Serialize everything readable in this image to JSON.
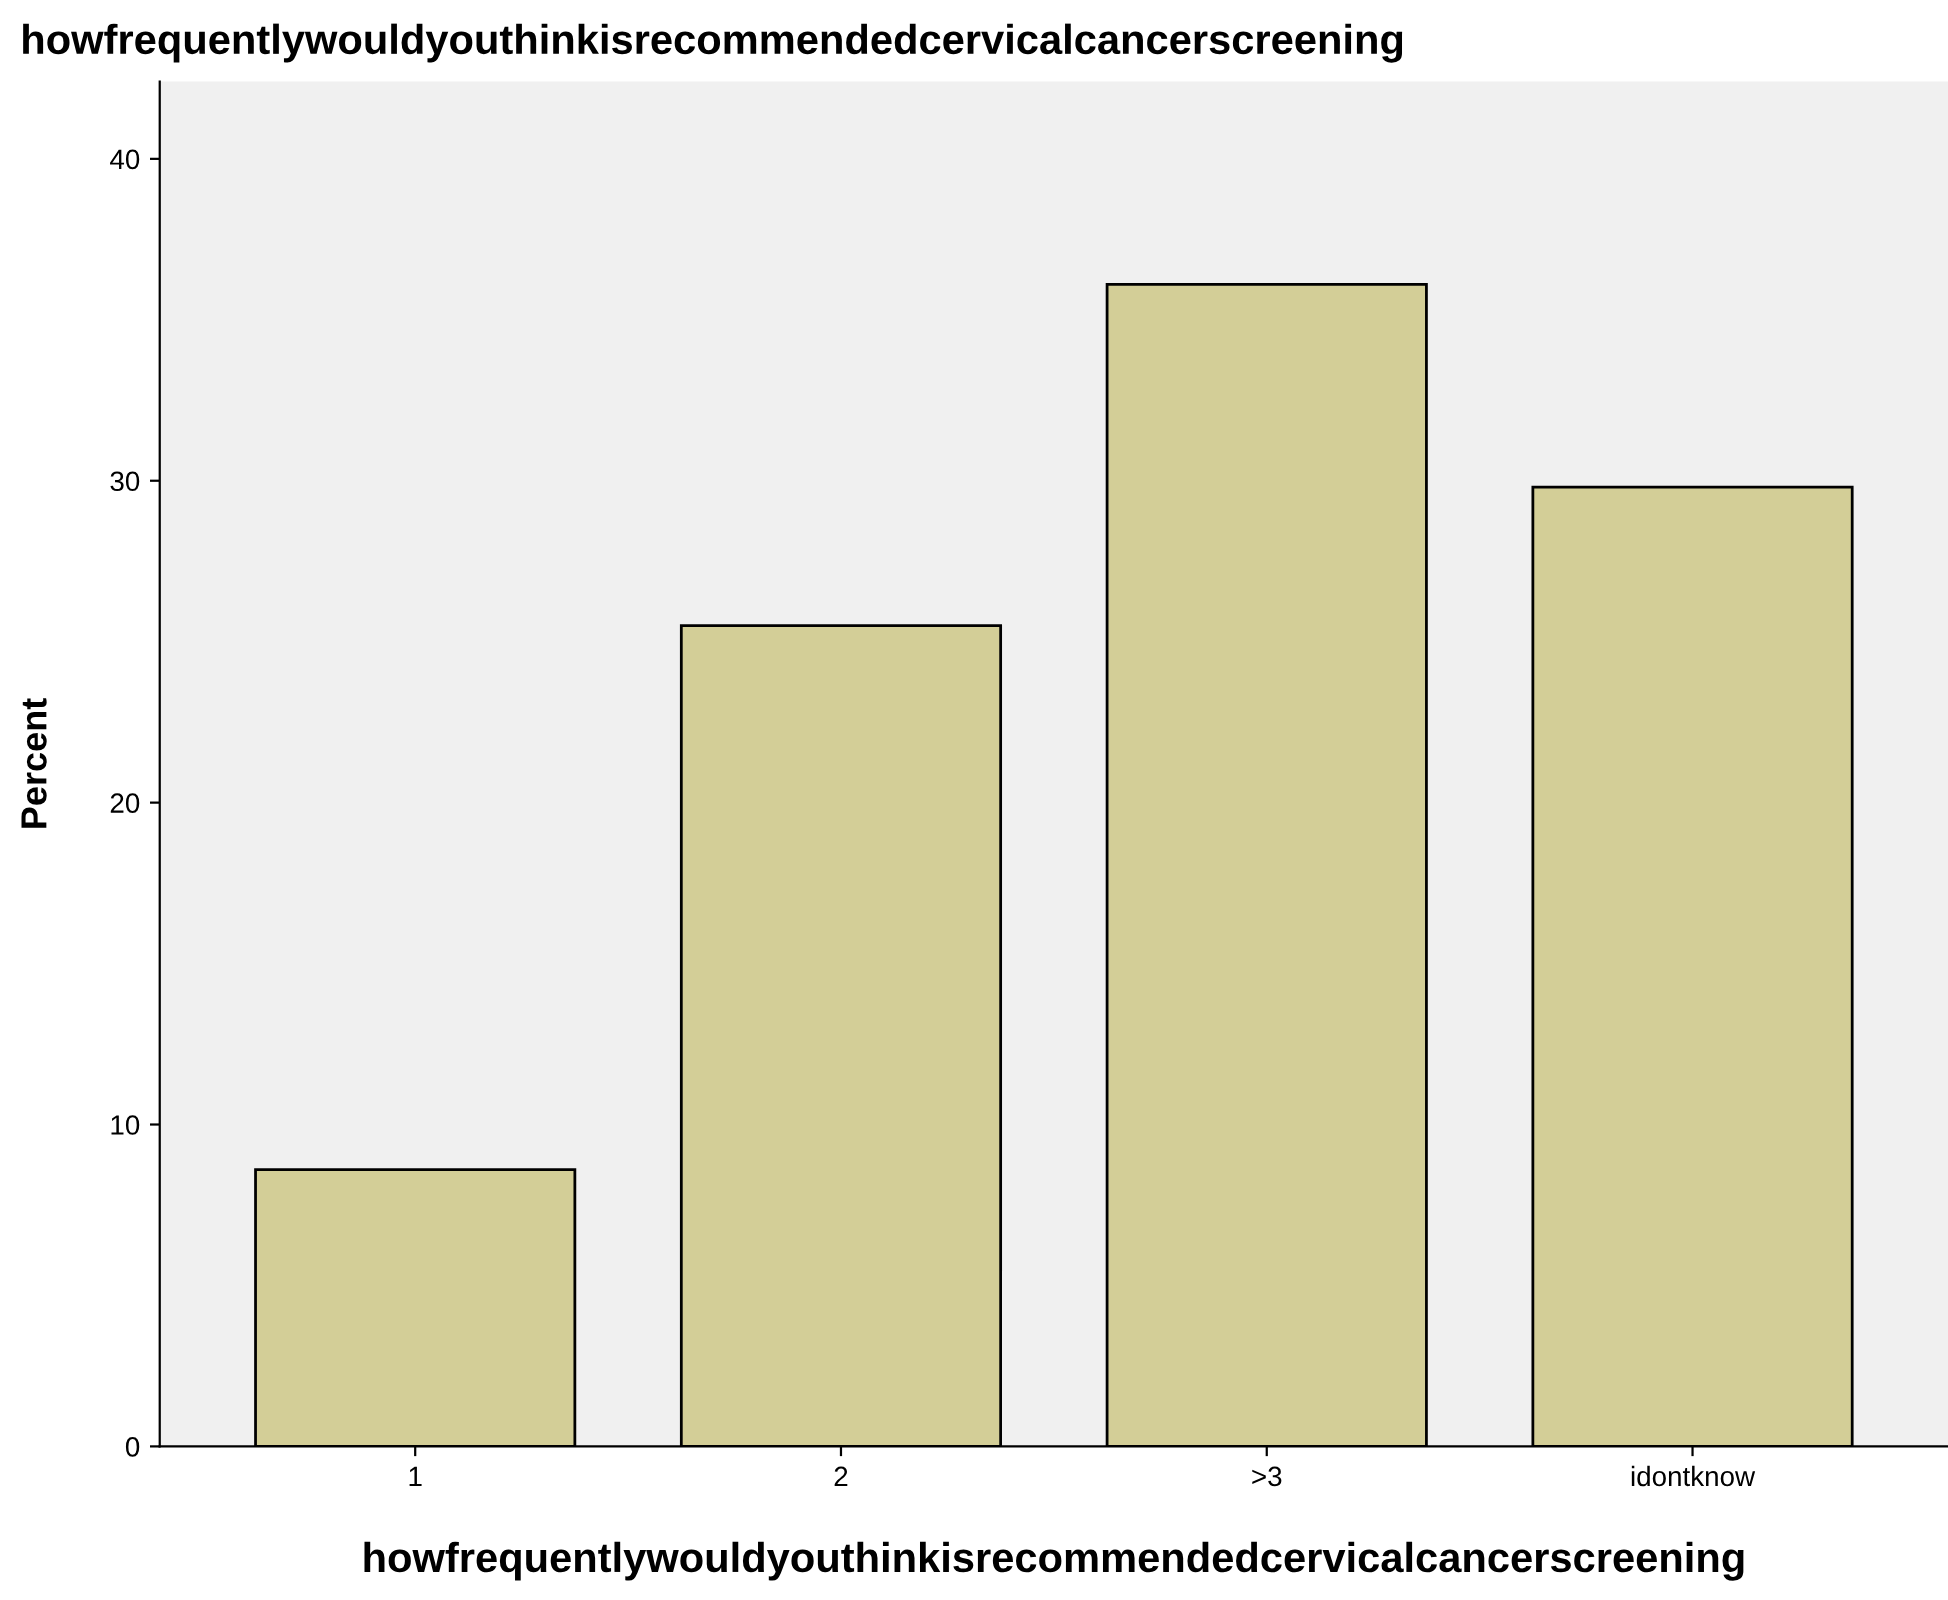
{
  "chart_data": {
    "type": "bar",
    "title": "howfrequentlywouldyouthinkisrecommendedcervicalcancerscreening",
    "xlabel": "howfrequentlywouldyouthinkisrecommendedcervicalcancerscreening",
    "ylabel": "Percent",
    "categories": [
      "1",
      "2",
      ">3",
      "idontknow"
    ],
    "values": [
      8.6,
      25.5,
      36.1,
      29.8
    ],
    "color": "#d3ce97",
    "ylim": [
      0,
      42.4
    ],
    "yticks": [
      0,
      10,
      20,
      30,
      40
    ],
    "grid": false,
    "legend": false
  }
}
